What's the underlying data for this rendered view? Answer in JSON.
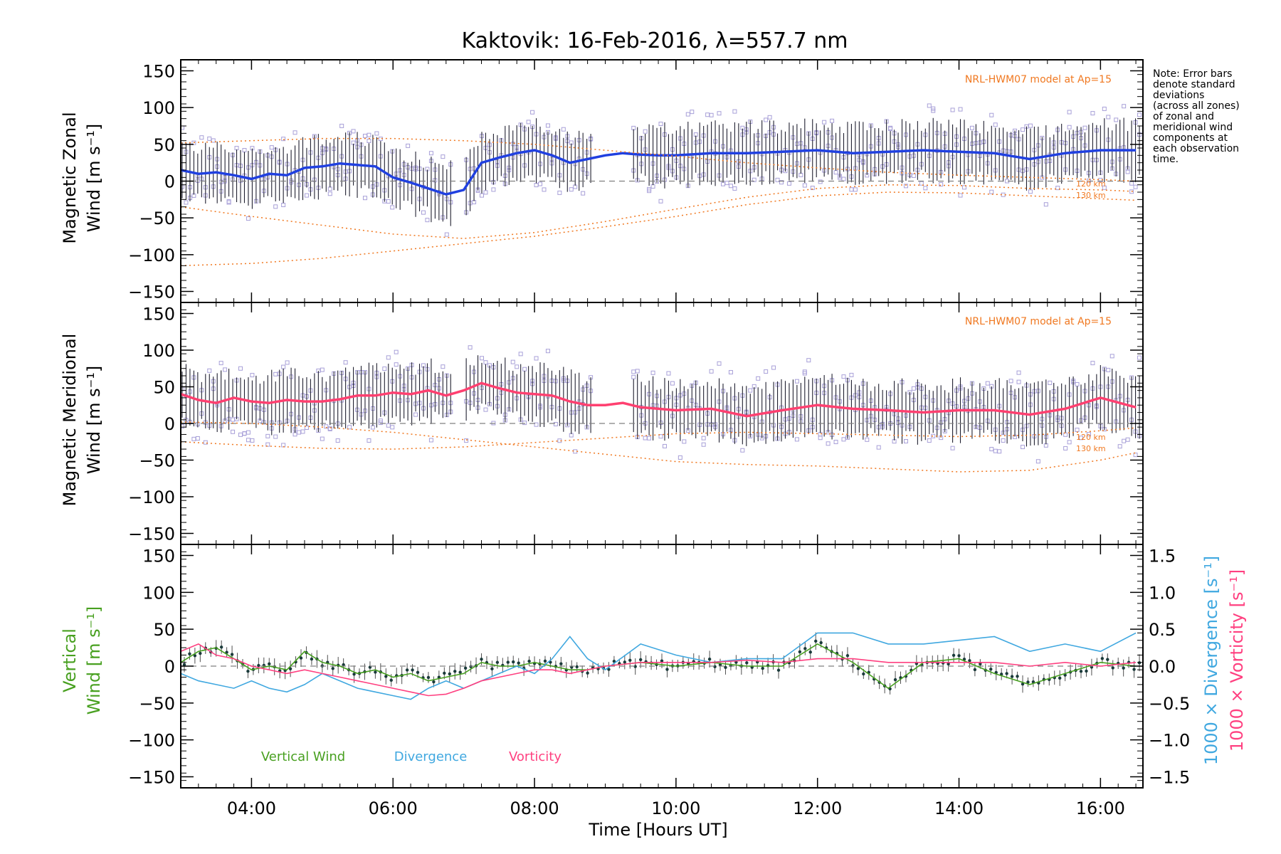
{
  "chart_data": [
    {
      "type": "line",
      "panel": "zonal",
      "title": "Kaktovik: 16-Feb-2016, λ=557.7 nm",
      "ylabel_line1": "Magnetic Zonal",
      "ylabel_line2": "Wind [m s⁻¹]",
      "ylim": [
        -165,
        165
      ],
      "yticks": [
        -150,
        -100,
        -50,
        0,
        50,
        100,
        150
      ],
      "model_label": "NRL-HWM07 model at Ap=15",
      "alt_labels": [
        "120 km",
        "130 km"
      ],
      "series": [
        {
          "color": "#2040e0",
          "x": [
            3.0,
            3.25,
            3.5,
            3.75,
            4.0,
            4.25,
            4.5,
            4.75,
            5.0,
            5.25,
            5.5,
            5.75,
            6.0,
            6.25,
            6.5,
            6.75,
            7.0,
            7.25,
            7.5,
            7.75,
            8.0,
            8.25,
            8.5,
            8.75,
            9.0,
            9.25,
            9.5,
            9.75,
            10.0,
            10.5,
            11.0,
            11.5,
            12.0,
            12.5,
            13.0,
            13.5,
            14.0,
            14.5,
            15.0,
            15.5,
            16.0,
            16.5
          ],
          "values": [
            15,
            10,
            12,
            8,
            3,
            10,
            8,
            18,
            20,
            24,
            22,
            20,
            5,
            -2,
            -10,
            -18,
            -12,
            25,
            32,
            38,
            42,
            35,
            25,
            30,
            35,
            38,
            36,
            35,
            35,
            38,
            38,
            40,
            42,
            38,
            40,
            42,
            40,
            38,
            30,
            38,
            42,
            42
          ]
        },
        {
          "name": "120 km",
          "color": "#f07820",
          "dashed": true,
          "x": [
            3.0,
            4.0,
            5.0,
            6.0,
            7.0,
            8.0,
            9.0,
            10.0,
            11.0,
            12.0,
            13.0,
            14.0,
            15.0,
            16.0,
            16.5
          ],
          "values": [
            -35,
            -48,
            -60,
            -72,
            -78,
            -70,
            -55,
            -38,
            -22,
            -10,
            -5,
            -6,
            -10,
            -12,
            -14
          ]
        },
        {
          "name": "130 km",
          "color": "#f07820",
          "dashed": true,
          "x": [
            3.0,
            4.0,
            5.0,
            6.0,
            7.0,
            8.0,
            9.0,
            10.0,
            11.0,
            12.0,
            13.0,
            14.0,
            15.0,
            16.0,
            16.5
          ],
          "values": [
            -115,
            -112,
            -105,
            -95,
            -85,
            -75,
            -62,
            -48,
            -32,
            -20,
            -15,
            -16,
            -20,
            -24,
            -26
          ]
        },
        {
          "color": "#f07820",
          "dashed": true,
          "x": [
            3.0,
            4.0,
            5.0,
            6.0,
            7.0,
            8.0,
            9.0,
            10.0,
            11.0,
            12.0,
            13.0,
            14.0,
            15.0,
            16.0,
            16.5
          ],
          "values": [
            52,
            55,
            58,
            58,
            55,
            50,
            42,
            34,
            25,
            18,
            12,
            8,
            5,
            2,
            0
          ]
        }
      ]
    },
    {
      "type": "line",
      "panel": "meridional",
      "ylabel_line1": "Magnetic Meridional",
      "ylabel_line2": "Wind [m s⁻¹]",
      "ylim": [
        -165,
        165
      ],
      "yticks": [
        -150,
        -100,
        -50,
        0,
        50,
        100,
        150
      ],
      "model_label": "NRL-HWM07 model at Ap=15",
      "alt_labels": [
        "120 km",
        "130 km"
      ],
      "series": [
        {
          "color": "#ff4070",
          "x": [
            3.0,
            3.25,
            3.5,
            3.75,
            4.0,
            4.25,
            4.5,
            4.75,
            5.0,
            5.25,
            5.5,
            5.75,
            6.0,
            6.25,
            6.5,
            6.75,
            7.0,
            7.25,
            7.5,
            7.75,
            8.0,
            8.25,
            8.5,
            8.75,
            9.0,
            9.25,
            9.5,
            9.75,
            10.0,
            10.5,
            11.0,
            11.5,
            12.0,
            12.5,
            13.0,
            13.5,
            14.0,
            14.5,
            15.0,
            15.5,
            16.0,
            16.5
          ],
          "values": [
            40,
            32,
            28,
            35,
            30,
            28,
            32,
            30,
            30,
            33,
            38,
            38,
            42,
            40,
            45,
            38,
            45,
            55,
            48,
            42,
            40,
            38,
            30,
            25,
            25,
            28,
            22,
            20,
            18,
            20,
            10,
            18,
            25,
            20,
            18,
            15,
            18,
            18,
            12,
            20,
            35,
            22
          ]
        },
        {
          "name": "120 km",
          "color": "#f07820",
          "dashed": true,
          "x": [
            3.0,
            4.0,
            5.0,
            6.0,
            7.0,
            8.0,
            9.0,
            10.0,
            11.0,
            12.0,
            13.0,
            14.0,
            15.0,
            16.0,
            16.5
          ],
          "values": [
            -25,
            -30,
            -34,
            -35,
            -32,
            -26,
            -20,
            -14,
            -12,
            -14,
            -16,
            -18,
            -16,
            -10,
            -6
          ]
        },
        {
          "name": "130 km",
          "color": "#f07820",
          "dashed": true,
          "x": [
            3.0,
            4.0,
            5.0,
            6.0,
            7.0,
            8.0,
            9.0,
            10.0,
            11.0,
            12.0,
            13.0,
            14.0,
            15.0,
            16.0,
            16.5
          ],
          "values": [
            2,
            0,
            -5,
            -12,
            -22,
            -32,
            -42,
            -52,
            -56,
            -58,
            -62,
            -66,
            -64,
            -50,
            -40
          ]
        }
      ]
    },
    {
      "type": "line",
      "panel": "vertical",
      "ylabel_line1": "Vertical",
      "ylabel_line2": "Wind [m s⁻¹]",
      "ylabel_right_div": "1000 × Divergence [s⁻¹]",
      "ylabel_right_vort": "1000 × Vorticity [s⁻¹]",
      "ylim": [
        -165,
        165
      ],
      "yticks": [
        -150,
        -100,
        -50,
        0,
        50,
        100,
        150
      ],
      "ylim_right": [
        -1.65,
        1.65
      ],
      "yticks_right": [
        -1.5,
        -1.0,
        -0.5,
        0.0,
        0.5,
        1.0,
        1.5
      ],
      "ytick_labels_right": [
        "−1.5",
        "−1.0",
        "−0.5",
        "0.0",
        "0.5",
        "1.0",
        "1.5"
      ],
      "legend": [
        "Vertical Wind",
        "Divergence",
        "Vorticity"
      ],
      "series": [
        {
          "name": "Vertical Wind",
          "color": "#48a020",
          "x": [
            3.0,
            3.25,
            3.5,
            3.75,
            4.0,
            4.25,
            4.5,
            4.75,
            5.0,
            5.25,
            5.5,
            5.75,
            6.0,
            6.25,
            6.5,
            6.75,
            7.0,
            7.25,
            7.5,
            7.75,
            8.0,
            8.25,
            8.5,
            8.75,
            9.0,
            9.5,
            10.0,
            10.5,
            11.0,
            11.5,
            12.0,
            12.5,
            13.0,
            13.5,
            14.0,
            14.5,
            15.0,
            15.5,
            16.0,
            16.5
          ],
          "values": [
            5,
            20,
            25,
            10,
            -5,
            0,
            -5,
            20,
            5,
            0,
            -10,
            -5,
            -15,
            -10,
            -20,
            -15,
            -10,
            5,
            0,
            0,
            5,
            0,
            -5,
            -5,
            0,
            5,
            0,
            5,
            0,
            0,
            30,
            5,
            -30,
            5,
            10,
            -10,
            -25,
            -10,
            5,
            0
          ]
        },
        {
          "name": "Divergence",
          "color": "#40a8e0",
          "x": [
            3.0,
            3.25,
            3.5,
            3.75,
            4.0,
            4.25,
            4.5,
            4.75,
            5.0,
            5.25,
            5.5,
            5.75,
            6.0,
            6.25,
            6.5,
            6.75,
            7.0,
            7.25,
            7.5,
            7.75,
            8.0,
            8.25,
            8.5,
            8.75,
            9.0,
            9.5,
            10.0,
            10.5,
            11.0,
            11.5,
            12.0,
            12.5,
            13.0,
            13.5,
            14.0,
            14.5,
            15.0,
            15.5,
            16.0,
            16.5
          ],
          "values": [
            -0.1,
            -0.2,
            -0.25,
            -0.3,
            -0.2,
            -0.3,
            -0.35,
            -0.25,
            -0.1,
            -0.2,
            -0.3,
            -0.35,
            -0.4,
            -0.45,
            -0.3,
            -0.2,
            -0.3,
            -0.2,
            -0.1,
            0.0,
            -0.1,
            0.1,
            0.4,
            0.1,
            -0.05,
            0.3,
            0.15,
            0.05,
            0.1,
            0.1,
            0.45,
            0.45,
            0.3,
            0.3,
            0.35,
            0.4,
            0.2,
            0.3,
            0.2,
            0.45
          ]
        },
        {
          "name": "Vorticity",
          "color": "#ff4080",
          "x": [
            3.0,
            3.25,
            3.5,
            3.75,
            4.0,
            4.25,
            4.5,
            4.75,
            5.0,
            5.25,
            5.5,
            5.75,
            6.0,
            6.25,
            6.5,
            6.75,
            7.0,
            7.25,
            7.5,
            7.75,
            8.0,
            8.25,
            8.5,
            8.75,
            9.0,
            9.5,
            10.0,
            10.5,
            11.0,
            11.5,
            12.0,
            12.5,
            13.0,
            13.5,
            14.0,
            14.5,
            15.0,
            15.5,
            16.0,
            16.5
          ],
          "values": [
            0.2,
            0.3,
            0.15,
            0.1,
            0.0,
            -0.05,
            -0.1,
            -0.05,
            -0.1,
            -0.15,
            -0.2,
            -0.25,
            -0.3,
            -0.35,
            -0.4,
            -0.38,
            -0.3,
            -0.2,
            -0.15,
            -0.1,
            -0.05,
            -0.05,
            -0.1,
            -0.05,
            0.0,
            0.05,
            0.05,
            0.05,
            0.08,
            0.05,
            0.1,
            0.1,
            0.05,
            0.05,
            0.05,
            0.05,
            0.0,
            0.05,
            0.0,
            0.05
          ]
        }
      ]
    }
  ],
  "xaxis": {
    "xlabel": "Time [Hours UT]",
    "xlim": [
      3.0,
      16.6
    ],
    "xticks": [
      4,
      6,
      8,
      10,
      12,
      14,
      16
    ],
    "xtick_labels": [
      "04:00",
      "06:00",
      "08:00",
      "10:00",
      "12:00",
      "14:00",
      "16:00"
    ]
  },
  "note": [
    "Note: Error bars",
    "denote standard",
    "deviations",
    "(across all zones)",
    "of zonal and",
    "meridional wind",
    "components at",
    "each observation",
    "time."
  ],
  "colors": {
    "scatter_points": "#a8a0d8",
    "error_bars": "#202030",
    "model_curves": "#f07820",
    "zero_line": "#808080"
  }
}
